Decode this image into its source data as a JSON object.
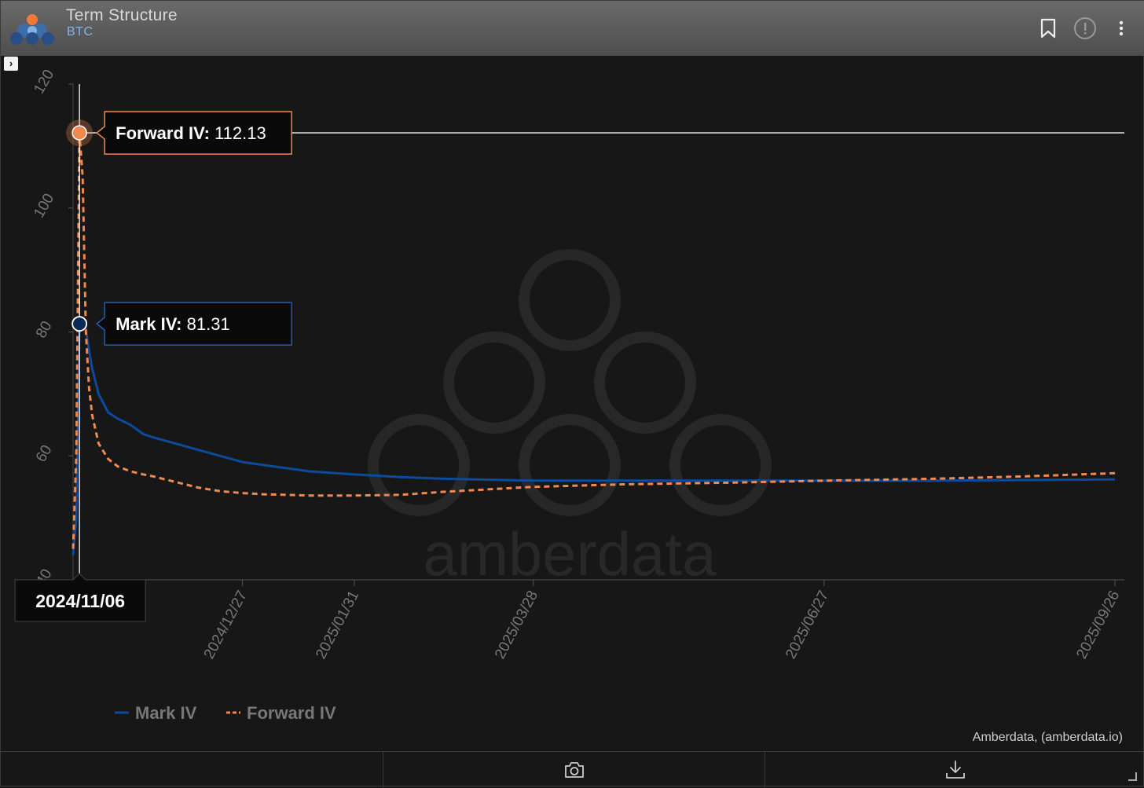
{
  "header": {
    "title": "Term Structure",
    "subtitle": "BTC"
  },
  "icons": {
    "bookmark": "bookmark-icon",
    "alert": "alert-icon",
    "menu": "more-vertical-icon",
    "camera": "camera-icon",
    "download": "download-icon",
    "expander": "chevron-right-icon"
  },
  "colors": {
    "mark_iv": "#0b4a9c",
    "forward_iv": "#f08850",
    "background": "#171717",
    "subtitle": "#7fb8ea"
  },
  "watermark": "amberdata",
  "credit": "Amberdata, (amberdata.io)",
  "crosshair": {
    "date_label": "2024/11/06",
    "tooltips": [
      {
        "name": "Forward IV:",
        "value": "112.13"
      },
      {
        "name": "Mark IV:",
        "value": "81.31"
      }
    ]
  },
  "chart_data": {
    "type": "line",
    "xaxis_type": "date",
    "xlim": [
      "2024-11-04",
      "2025-09-26"
    ],
    "ylim": [
      40,
      120
    ],
    "yticks": [
      40,
      60,
      80,
      100,
      120
    ],
    "xticks": [
      "2024/12/27",
      "2025/01/31",
      "2025/03/28",
      "2025/06/27",
      "2025/09/26"
    ],
    "grid": false,
    "legend_position": "bottom-left",
    "series": [
      {
        "name": "Mark IV",
        "style": "solid",
        "color": "#0b4a9c",
        "x": [
          "2024-11-04",
          "2024-11-05",
          "2024-11-06",
          "2024-11-07",
          "2024-11-08",
          "2024-11-09",
          "2024-11-10",
          "2024-11-12",
          "2024-11-15",
          "2024-11-18",
          "2024-11-22",
          "2024-11-26",
          "2024-11-29",
          "2024-12-06",
          "2024-12-13",
          "2024-12-20",
          "2024-12-27",
          "2025-01-03",
          "2025-01-10",
          "2025-01-17",
          "2025-01-31",
          "2025-02-14",
          "2025-02-28",
          "2025-03-28",
          "2025-04-25",
          "2025-05-30",
          "2025-06-27",
          "2025-07-31",
          "2025-08-29",
          "2025-09-26"
        ],
        "y": [
          44,
          50,
          81.31,
          81.6,
          80.5,
          77,
          74,
          70,
          67,
          66,
          65,
          63.5,
          63,
          62,
          61,
          60,
          59,
          58.5,
          58,
          57.5,
          57,
          56.6,
          56.3,
          56.0,
          56.0,
          56.0,
          56.0,
          56.0,
          56.1,
          56.2
        ]
      },
      {
        "name": "Forward IV",
        "style": "dashed",
        "color": "#f08850",
        "x": [
          "2024-11-04",
          "2024-11-05",
          "2024-11-06",
          "2024-11-07",
          "2024-11-08",
          "2024-11-09",
          "2024-11-10",
          "2024-11-12",
          "2024-11-15",
          "2024-11-18",
          "2024-11-22",
          "2024-11-26",
          "2024-11-29",
          "2024-12-06",
          "2024-12-13",
          "2024-12-20",
          "2024-12-27",
          "2025-01-03",
          "2025-01-10",
          "2025-01-17",
          "2025-01-31",
          "2025-02-14",
          "2025-02-28",
          "2025-03-28",
          "2025-04-25",
          "2025-05-30",
          "2025-06-27",
          "2025-07-31",
          "2025-08-29",
          "2025-09-26"
        ],
        "y": [
          45,
          60,
          112.13,
          105,
          80,
          71,
          66.5,
          62,
          59.5,
          58.3,
          57.5,
          57.0,
          56.7,
          55.8,
          54.9,
          54.3,
          54.0,
          53.8,
          53.7,
          53.6,
          53.6,
          53.7,
          54.2,
          55.0,
          55.4,
          55.7,
          56.0,
          56.3,
          56.7,
          57.2
        ]
      }
    ]
  }
}
